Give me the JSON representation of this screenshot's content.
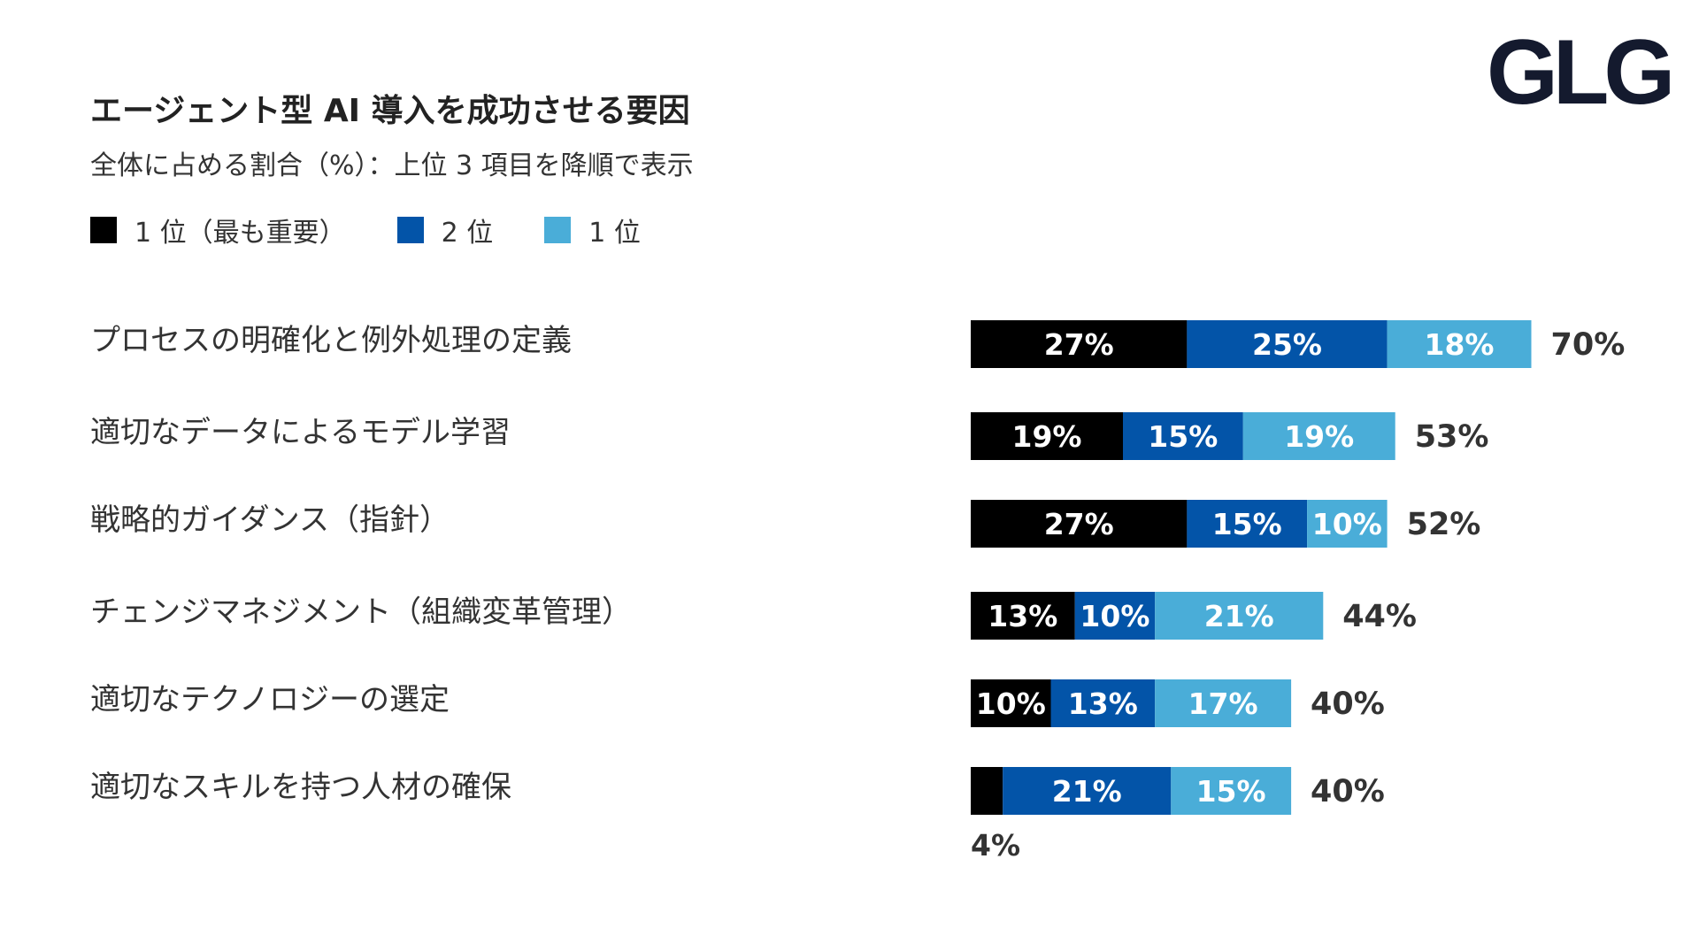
{
  "title": "エージェント型 AI 導入を成功させる要因",
  "subtitle": "全体に占める割合（%）：上位 3 項目を降順で表示",
  "logo": "GLG",
  "colors": {
    "rank1": "#000000",
    "rank2": "#0354a8",
    "rank3": "#4aadd8",
    "text": "#333333",
    "label_on_bar": "#ffffff"
  },
  "legend": [
    {
      "label": "1 位（最も重要）",
      "color": "#000000"
    },
    {
      "label": "2 位",
      "color": "#0354a8"
    },
    {
      "label": "1 位",
      "color": "#4aadd8"
    }
  ],
  "chart_data": {
    "type": "bar",
    "orientation": "horizontal",
    "stacked": true,
    "title": "エージェント型 AI 導入を成功させる要因",
    "subtitle": "全体に占める割合（%）：上位 3 項目を降順で表示",
    "categories": [
      "プロセスの明確化と例外処理の定義",
      "適切なデータによるモデル学習",
      "戦略的ガイダンス（指針）",
      "チェンジマネジメント（組織変革管理）",
      "適切なテクノロジーの選定",
      "適切なスキルを持つ人材の確保"
    ],
    "series": [
      {
        "name": "1 位（最も重要）",
        "values": [
          27,
          19,
          27,
          13,
          10,
          4
        ],
        "labels": [
          "27%",
          "19%",
          "27%",
          "13%",
          "10%",
          "4%"
        ]
      },
      {
        "name": "2 位",
        "values": [
          25,
          15,
          15,
          10,
          13,
          21
        ],
        "labels": [
          "25%",
          "15%",
          "15%",
          "10%",
          "13%",
          "21%"
        ]
      },
      {
        "name": "1 位",
        "values": [
          18,
          19,
          10,
          21,
          17,
          15
        ],
        "labels": [
          "18%",
          "19%",
          "10%",
          "21%",
          "17%",
          "15%"
        ]
      }
    ],
    "totals": [
      70,
      53,
      52,
      44,
      40,
      40
    ],
    "total_labels": [
      "70%",
      "53%",
      "52%",
      "44%",
      "40%",
      "40%"
    ],
    "xlim": [
      0,
      70
    ],
    "grid": false,
    "legend_position": "top-left"
  }
}
